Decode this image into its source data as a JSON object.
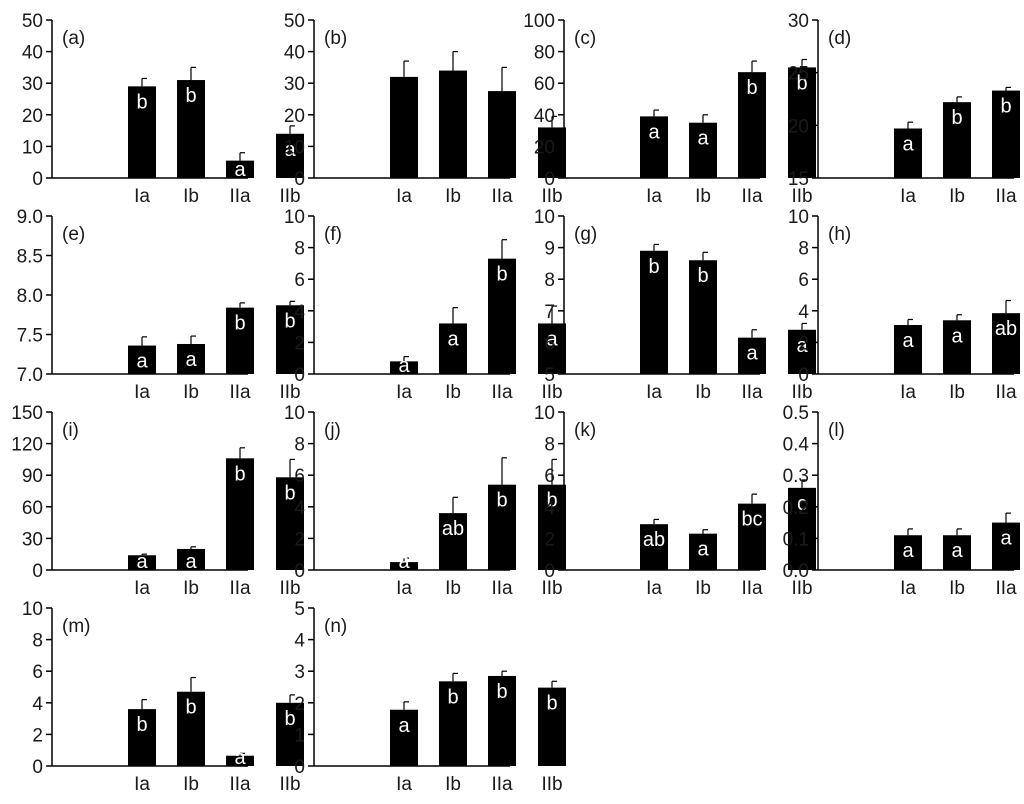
{
  "figure": {
    "bar_color": "#000000",
    "axis_color": "#000000",
    "label_color": "#1a1a1a",
    "sig_label_color": "#ffffff"
  },
  "chart_data": [
    {
      "id": "a",
      "type": "bar",
      "panel_label": "(a)",
      "categories": [
        "Ia",
        "Ib",
        "IIa",
        "IIb"
      ],
      "values": [
        29,
        31,
        5.5,
        14
      ],
      "errors": [
        2.5,
        4,
        2.5,
        2.5
      ],
      "sig": [
        "b",
        "b",
        "a",
        "a"
      ],
      "ylim": [
        0,
        50
      ],
      "yticks": [
        0,
        10,
        20,
        30,
        40,
        50
      ],
      "ytick_labels": [
        "0",
        "10",
        "20",
        "30",
        "40",
        "50"
      ]
    },
    {
      "id": "b",
      "type": "bar",
      "panel_label": "(b)",
      "categories": [
        "Ia",
        "Ib",
        "IIa",
        "IIb"
      ],
      "values": [
        32,
        34,
        27.5,
        16
      ],
      "errors": [
        5,
        6,
        7.5,
        3.5
      ],
      "sig": [
        "",
        "",
        "",
        ""
      ],
      "ylim": [
        0,
        50
      ],
      "yticks": [
        0,
        10,
        20,
        30,
        40,
        50
      ],
      "ytick_labels": [
        "0",
        "10",
        "20",
        "30",
        "40",
        "50"
      ]
    },
    {
      "id": "c",
      "type": "bar",
      "panel_label": "(c)",
      "categories": [
        "Ia",
        "Ib",
        "IIa",
        "IIb"
      ],
      "values": [
        39,
        35,
        67,
        70
      ],
      "errors": [
        4,
        5,
        7,
        5
      ],
      "sig": [
        "a",
        "a",
        "b",
        "b"
      ],
      "ylim": [
        0,
        100
      ],
      "yticks": [
        0,
        20,
        40,
        60,
        80,
        100
      ],
      "ytick_labels": [
        "0",
        "20",
        "40",
        "60",
        "80",
        "100"
      ]
    },
    {
      "id": "d",
      "type": "bar",
      "panel_label": "(d)",
      "categories": [
        "Ia",
        "Ib",
        "IIa",
        "IIb"
      ],
      "values": [
        19.7,
        22.2,
        23.3,
        23.8
      ],
      "errors": [
        0.6,
        0.5,
        0.3,
        0.3
      ],
      "sig": [
        "a",
        "b",
        "b",
        "b"
      ],
      "ylim": [
        15,
        30
      ],
      "yticks": [
        15,
        20,
        25,
        30
      ],
      "ytick_labels": [
        "15",
        "20",
        "25",
        "30"
      ]
    },
    {
      "id": "e",
      "type": "bar",
      "panel_label": "(e)",
      "categories": [
        "Ia",
        "Ib",
        "IIa",
        "IIb"
      ],
      "values": [
        7.36,
        7.38,
        7.84,
        7.87
      ],
      "errors": [
        0.11,
        0.1,
        0.06,
        0.05
      ],
      "sig": [
        "a",
        "a",
        "b",
        "b"
      ],
      "ylim": [
        7.0,
        9.0
      ],
      "yticks": [
        7.0,
        7.5,
        8.0,
        8.5,
        9.0
      ],
      "ytick_labels": [
        "7.0",
        "7.5",
        "8.0",
        "8.5",
        "9.0"
      ]
    },
    {
      "id": "f",
      "type": "bar",
      "panel_label": "(f)",
      "categories": [
        "Ia",
        "Ib",
        "IIa",
        "IIb"
      ],
      "values": [
        0.8,
        3.2,
        7.3,
        3.2
      ],
      "errors": [
        0.3,
        1,
        1.2,
        1.1
      ],
      "sig": [
        "a",
        "a",
        "b",
        "a"
      ],
      "ylim": [
        0,
        10
      ],
      "yticks": [
        0,
        2,
        4,
        6,
        8,
        10
      ],
      "ytick_labels": [
        "0",
        "2",
        "4",
        "6",
        "8",
        "10"
      ]
    },
    {
      "id": "g",
      "type": "bar",
      "panel_label": "(g)",
      "categories": [
        "Ia",
        "Ib",
        "IIa",
        "IIb"
      ],
      "values": [
        8.9,
        8.6,
        6.15,
        6.4
      ],
      "errors": [
        0.2,
        0.25,
        0.25,
        0.2
      ],
      "sig": [
        "b",
        "b",
        "a",
        "a"
      ],
      "ylim": [
        5,
        10
      ],
      "yticks": [
        5,
        6,
        7,
        8,
        9,
        10
      ],
      "ytick_labels": [
        "5",
        "6",
        "7",
        "8",
        "9",
        "10"
      ]
    },
    {
      "id": "h",
      "type": "bar",
      "panel_label": "(h)",
      "categories": [
        "Ia",
        "Ib",
        "IIa",
        "IIb"
      ],
      "values": [
        3.1,
        3.4,
        3.85,
        6.3
      ],
      "errors": [
        0.35,
        0.35,
        0.8,
        1
      ],
      "sig": [
        "a",
        "a",
        "ab",
        "b"
      ],
      "ylim": [
        0,
        10
      ],
      "yticks": [
        0,
        2,
        4,
        6,
        8,
        10
      ],
      "ytick_labels": [
        "0",
        "2",
        "4",
        "6",
        "8",
        "10"
      ]
    },
    {
      "id": "i",
      "type": "bar",
      "panel_label": "(i)",
      "categories": [
        "Ia",
        "Ib",
        "IIa",
        "IIb"
      ],
      "values": [
        14,
        20,
        106,
        88
      ],
      "errors": [
        1,
        2,
        10,
        17
      ],
      "sig": [
        "a",
        "a",
        "b",
        "b"
      ],
      "ylim": [
        0,
        150
      ],
      "yticks": [
        0,
        30,
        60,
        90,
        120,
        150
      ],
      "ytick_labels": [
        "0",
        "30",
        "60",
        "90",
        "120",
        "150"
      ]
    },
    {
      "id": "j",
      "type": "bar",
      "panel_label": "(j)",
      "categories": [
        "Ia",
        "Ib",
        "IIa",
        "IIb"
      ],
      "values": [
        0.5,
        3.6,
        5.4,
        5.4
      ],
      "errors": [
        0.25,
        1,
        1.7,
        1.6
      ],
      "sig": [
        "a",
        "ab",
        "b",
        "b"
      ],
      "ylim": [
        0,
        10
      ],
      "yticks": [
        0,
        2,
        4,
        6,
        8,
        10
      ],
      "ytick_labels": [
        "0",
        "2",
        "4",
        "6",
        "8",
        "10"
      ]
    },
    {
      "id": "k",
      "type": "bar",
      "panel_label": "(k)",
      "categories": [
        "Ia",
        "Ib",
        "IIa",
        "IIb"
      ],
      "values": [
        2.9,
        2.3,
        4.2,
        5.2
      ],
      "errors": [
        0.3,
        0.25,
        0.6,
        0.5
      ],
      "sig": [
        "ab",
        "a",
        "bc",
        "c"
      ],
      "ylim": [
        0,
        10
      ],
      "yticks": [
        0,
        2,
        4,
        6,
        8,
        10
      ],
      "ytick_labels": [
        "0",
        "2",
        "4",
        "6",
        "8",
        "10"
      ]
    },
    {
      "id": "l",
      "type": "bar",
      "panel_label": "(l)",
      "categories": [
        "Ia",
        "Ib",
        "IIa",
        "IIb"
      ],
      "values": [
        0.11,
        0.11,
        0.15,
        0.3
      ],
      "errors": [
        0.02,
        0.02,
        0.03,
        0.06
      ],
      "sig": [
        "a",
        "a",
        "a",
        "b"
      ],
      "ylim": [
        0,
        0.5
      ],
      "yticks": [
        0,
        0.1,
        0.2,
        0.3,
        0.4,
        0.5
      ],
      "ytick_labels": [
        "0.0",
        "0.1",
        "0.2",
        "0.3",
        "0.4",
        "0.5"
      ]
    },
    {
      "id": "m",
      "type": "bar",
      "panel_label": "(m)",
      "categories": [
        "Ia",
        "Ib",
        "IIa",
        "IIb"
      ],
      "values": [
        3.6,
        4.7,
        0.65,
        4
      ],
      "errors": [
        0.6,
        0.9,
        0.15,
        0.5
      ],
      "sig": [
        "b",
        "b",
        "a",
        "b"
      ],
      "ylim": [
        0,
        10
      ],
      "yticks": [
        0,
        2,
        4,
        6,
        8,
        10
      ],
      "ytick_labels": [
        "0",
        "2",
        "4",
        "6",
        "8",
        "10"
      ]
    },
    {
      "id": "n",
      "type": "bar",
      "panel_label": "(n)",
      "categories": [
        "Ia",
        "Ib",
        "IIa",
        "IIb"
      ],
      "values": [
        1.78,
        2.68,
        2.85,
        2.48
      ],
      "errors": [
        0.25,
        0.25,
        0.15,
        0.2
      ],
      "sig": [
        "a",
        "b",
        "b",
        "b"
      ],
      "ylim": [
        0,
        5
      ],
      "yticks": [
        0,
        1,
        2,
        3,
        4,
        5
      ],
      "ytick_labels": [
        "0",
        "1",
        "2",
        "3",
        "4",
        "5"
      ]
    }
  ]
}
